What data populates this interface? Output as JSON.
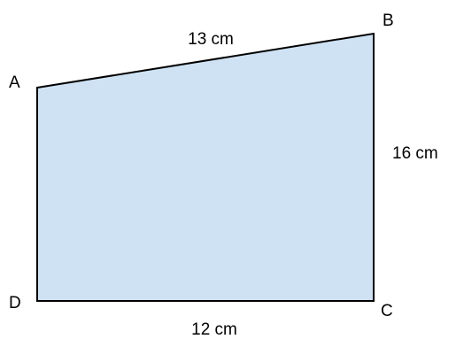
{
  "diagram": {
    "shape": "trapezoid",
    "fill_color": "#cfe2f3",
    "stroke_color": "#000000",
    "vertices": {
      "A": "A",
      "B": "B",
      "C": "C",
      "D": "D"
    },
    "sides": {
      "AB": "13 cm",
      "BC": "16 cm",
      "DC": "12 cm"
    }
  }
}
